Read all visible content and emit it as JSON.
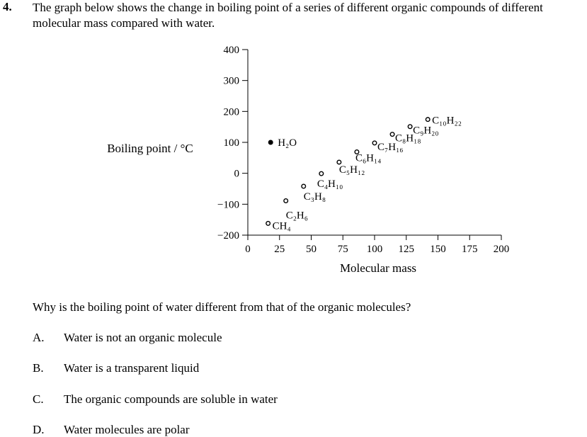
{
  "question": {
    "number": "4.",
    "stem": "The graph below shows the change in boiling point of a series of different organic compounds of different molecular mass compared with water.",
    "prompt": "Why is the boiling point of water different from that of the organic molecules?",
    "options": [
      {
        "letter": "A.",
        "text": "Water is not an organic molecule"
      },
      {
        "letter": "B.",
        "text": "Water is a transparent liquid"
      },
      {
        "letter": "C.",
        "text": "The organic compounds are soluble in water"
      },
      {
        "letter": "D.",
        "text": "Water molecules are polar"
      }
    ]
  },
  "chart_data": {
    "type": "scatter",
    "xlabel": "Molecular mass",
    "ylabel": "Boiling point / °C",
    "xlim": [
      0,
      200
    ],
    "ylim": [
      -200,
      400
    ],
    "xticks": [
      0,
      25,
      50,
      75,
      100,
      125,
      150,
      175,
      200
    ],
    "yticks": [
      400,
      300,
      200,
      100,
      0,
      -100,
      -200
    ],
    "ytick_labels": [
      "400",
      "300",
      "200",
      "100",
      "0",
      "−100",
      "−200"
    ],
    "grid": false,
    "points": [
      {
        "label": "H₂O",
        "x": 18,
        "y": 100,
        "marker": "filled"
      },
      {
        "label": "CH₄",
        "x": 16,
        "y": -162,
        "marker": "open"
      },
      {
        "label": "C₂H₆",
        "x": 30,
        "y": -89,
        "marker": "open"
      },
      {
        "label": "C₃H₈",
        "x": 44,
        "y": -42,
        "marker": "open"
      },
      {
        "label": "C₄H₁₀",
        "x": 58,
        "y": -1,
        "marker": "open"
      },
      {
        "label": "C₅H₁₂",
        "x": 72,
        "y": 36,
        "marker": "open"
      },
      {
        "label": "C₆H₁₄",
        "x": 86,
        "y": 69,
        "marker": "open"
      },
      {
        "label": "C₇H₁₆",
        "x": 100,
        "y": 98,
        "marker": "open"
      },
      {
        "label": "C₈H₁₈",
        "x": 114,
        "y": 126,
        "marker": "open"
      },
      {
        "label": "C₉H₂₀",
        "x": 128,
        "y": 151,
        "marker": "open"
      },
      {
        "label": "C₁₀H₂₂",
        "x": 142,
        "y": 174,
        "marker": "open"
      }
    ]
  }
}
